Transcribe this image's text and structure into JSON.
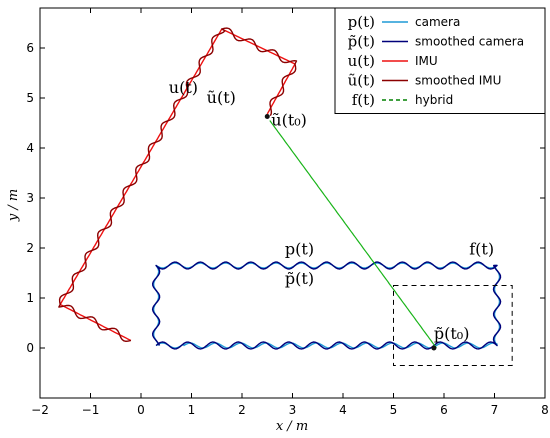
{
  "chart_data": {
    "type": "line",
    "xlabel": "x / m",
    "ylabel": "y / m",
    "xlim": [
      -2,
      8
    ],
    "ylim": [
      -1,
      6.8
    ],
    "xticks": [
      "−2",
      "−1",
      "0",
      "1",
      "2",
      "3",
      "4",
      "5",
      "6",
      "7",
      "8"
    ],
    "yticks": [
      "0",
      "1",
      "2",
      "3",
      "4",
      "5",
      "6"
    ],
    "xtick_values": [
      -2,
      -1,
      0,
      1,
      2,
      3,
      4,
      5,
      6,
      7,
      8
    ],
    "ytick_values": [
      0,
      1,
      2,
      3,
      4,
      5,
      6
    ],
    "grid": false,
    "legend_position": "top-right",
    "legend": [
      {
        "symbol": "p(t)",
        "label": "camera",
        "color": "#1f9ad6",
        "style": "solid"
      },
      {
        "symbol": "p̃(t)",
        "label": "smoothed camera",
        "color": "#00007a",
        "style": "solid"
      },
      {
        "symbol": "u(t)",
        "label": "IMU",
        "color": "#ee1111",
        "style": "solid"
      },
      {
        "symbol": "ũ(t)",
        "label": "smoothed IMU",
        "color": "#8b0000",
        "style": "solid"
      },
      {
        "symbol": "f(t)",
        "label": "hybrid",
        "color": "#008000",
        "style": "dashed"
      }
    ],
    "annotations": [
      {
        "text": "u(t)",
        "x": 0.55,
        "y": 5.1
      },
      {
        "text": "ũ(t)",
        "x": 1.3,
        "y": 4.9
      },
      {
        "text": "ũ(t₀)",
        "x": 2.58,
        "y": 4.45
      },
      {
        "text": "p(t)",
        "x": 2.85,
        "y": 1.87
      },
      {
        "text": "p̃(t)",
        "x": 2.85,
        "y": 1.28
      },
      {
        "text": "f(t)",
        "x": 6.5,
        "y": 1.87
      },
      {
        "text": "p̃(t₀)",
        "x": 5.8,
        "y": 0.18
      }
    ],
    "series": [
      {
        "name": "camera",
        "color": "#1f9ad6",
        "wiggle": 0.05,
        "x": [
          0.3,
          0.85,
          7.05,
          7.05,
          0.3,
          0.3
        ],
        "y": [
          0.05,
          0.05,
          0.05,
          1.65,
          1.65,
          0.05
        ]
      },
      {
        "name": "smoothed camera",
        "color": "#00007a",
        "wiggle": 0.07,
        "x": [
          0.3,
          7.05,
          7.05,
          0.3,
          0.3
        ],
        "y": [
          0.05,
          0.05,
          1.65,
          1.65,
          0.05
        ]
      },
      {
        "name": "IMU",
        "color": "#ee1111",
        "wiggle": 0.0,
        "x": [
          -0.2,
          -1.6,
          1.6,
          3.05,
          2.5
        ],
        "y": [
          0.15,
          0.87,
          6.38,
          5.68,
          4.68
        ]
      },
      {
        "name": "smoothed IMU",
        "color": "#8b0000",
        "wiggle": 0.07,
        "x": [
          -0.2,
          -1.6,
          1.6,
          3.05,
          2.5
        ],
        "y": [
          0.15,
          0.87,
          6.38,
          5.68,
          4.68
        ]
      },
      {
        "name": "hybrid",
        "color": "#19b419",
        "wiggle": 0.0,
        "x": [
          2.55,
          5.85
        ],
        "y": [
          4.55,
          0.0
        ]
      }
    ],
    "markers": [
      {
        "label": "ũ(t₀)",
        "x": 2.5,
        "y": 4.63,
        "color": "#111111"
      },
      {
        "label": "p̃(t₀)",
        "x": 5.8,
        "y": 0.0,
        "color": "#111111"
      }
    ],
    "highlight_box": {
      "x": [
        5.0,
        7.35
      ],
      "y": [
        -0.35,
        1.25
      ]
    }
  }
}
